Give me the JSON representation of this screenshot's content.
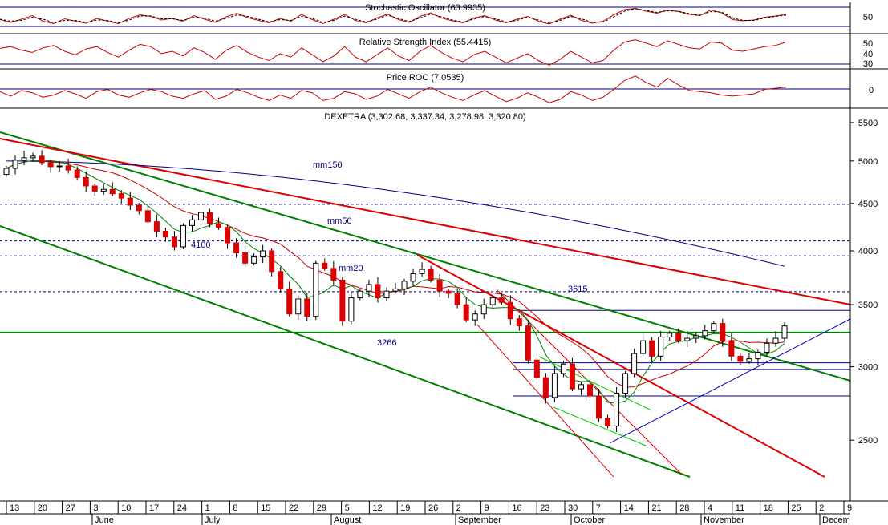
{
  "chart_data": [
    {
      "type": "line",
      "title": "Stochastic Oscillator (63.9935)",
      "yticks": [
        50
      ],
      "series": [
        {
          "style": "solid",
          "color": "#cc0000",
          "values": [
            38,
            24,
            40,
            58,
            30,
            18,
            42,
            30,
            20,
            44,
            30,
            18,
            44,
            62,
            54,
            36,
            44,
            30,
            58,
            40,
            24,
            52,
            70,
            48,
            34,
            22,
            44,
            30,
            64,
            38,
            18,
            40,
            64,
            34,
            22,
            46,
            66,
            38,
            24,
            54,
            72,
            46,
            32,
            22,
            46,
            58,
            36,
            22,
            40,
            54,
            30,
            16,
            40,
            60,
            34,
            20,
            30,
            62,
            88,
            94,
            80,
            70,
            86,
            78,
            64,
            58,
            86,
            72,
            38,
            32,
            36,
            50,
            56,
            64
          ]
        },
        {
          "style": "dashed",
          "color": "#000000",
          "values": [
            40,
            30,
            34,
            50,
            40,
            22,
            34,
            34,
            24,
            36,
            34,
            22,
            36,
            56,
            56,
            42,
            42,
            34,
            50,
            46,
            30,
            44,
            62,
            54,
            40,
            26,
            38,
            34,
            54,
            44,
            24,
            34,
            56,
            40,
            26,
            40,
            60,
            44,
            28,
            46,
            66,
            52,
            36,
            26,
            40,
            54,
            42,
            26,
            34,
            50,
            36,
            20,
            34,
            54,
            42,
            24,
            26,
            52,
            80,
            92,
            84,
            74,
            82,
            80,
            68,
            60,
            78,
            76,
            46,
            34,
            34,
            46,
            54,
            60
          ]
        }
      ]
    },
    {
      "type": "line",
      "title": "Relative Strength Index (55.4415)",
      "yticks": [
        50,
        40,
        30
      ],
      "series": [
        {
          "color": "#cc0000",
          "values": [
            55,
            58,
            52,
            48,
            56,
            60,
            50,
            44,
            54,
            58,
            48,
            40,
            52,
            62,
            58,
            46,
            50,
            42,
            56,
            48,
            36,
            52,
            60,
            48,
            40,
            34,
            46,
            40,
            56,
            44,
            32,
            42,
            58,
            40,
            32,
            44,
            56,
            42,
            34,
            50,
            60,
            48,
            38,
            32,
            44,
            50,
            40,
            30,
            38,
            46,
            34,
            26,
            36,
            50,
            40,
            30,
            34,
            52,
            66,
            70,
            64,
            58,
            68,
            62,
            56,
            54,
            66,
            64,
            52,
            50,
            54,
            58,
            60,
            66
          ]
        }
      ]
    },
    {
      "type": "line",
      "title": "Price ROC (7.0535)",
      "yticks": [
        0
      ],
      "series": [
        {
          "color": "#cc0000",
          "values": [
            2,
            -2,
            3,
            1,
            -3,
            -1,
            3,
            0,
            -4,
            2,
            4,
            -1,
            -3,
            1,
            4,
            2,
            -2,
            -4,
            0,
            3,
            -5,
            -2,
            4,
            1,
            -3,
            -6,
            -1,
            -4,
            3,
            1,
            -6,
            -4,
            2,
            0,
            -5,
            -2,
            4,
            0,
            -4,
            2,
            6,
            1,
            -3,
            -6,
            -1,
            3,
            -2,
            -7,
            -4,
            1,
            -3,
            -8,
            -5,
            2,
            -1,
            -6,
            -3,
            4,
            12,
            16,
            10,
            6,
            14,
            8,
            3,
            2,
            1,
            -1,
            -2,
            -1,
            0,
            4,
            5,
            6
          ]
        }
      ]
    },
    {
      "type": "candlestick",
      "title": "DEXETRA (3,302.68, 3,337.34, 3,278.98, 3,320.80)",
      "yscale": "log",
      "ylim": [
        2150,
        5700
      ],
      "yticks": [
        5500,
        5000,
        4500,
        4000,
        3500,
        3000,
        2500
      ],
      "x_tick_labels": [
        "13",
        "20",
        "27",
        "3",
        "10",
        "17",
        "24",
        "1",
        "8",
        "15",
        "22",
        "29",
        "5",
        "12",
        "19",
        "26",
        "2",
        "9",
        "16",
        "23",
        "30",
        "7",
        "14",
        "21",
        "28",
        "4",
        "11",
        "18",
        "25",
        "2",
        "9"
      ],
      "month_labels": [
        "June",
        "July",
        "August",
        "September",
        "October",
        "November",
        "Decem"
      ],
      "closes": [
        4910,
        5010,
        5040,
        5060,
        4980,
        4930,
        4940,
        4890,
        4800,
        4700,
        4640,
        4660,
        4610,
        4560,
        4480,
        4420,
        4300,
        4200,
        4140,
        4040,
        4260,
        4320,
        4400,
        4280,
        4240,
        4080,
        3980,
        3880,
        3940,
        4000,
        3800,
        3640,
        3420,
        3550,
        3400,
        3880,
        3830,
        3720,
        3360,
        3560,
        3620,
        3680,
        3560,
        3620,
        3640,
        3710,
        3780,
        3820,
        3720,
        3620,
        3600,
        3500,
        3370,
        3420,
        3500,
        3560,
        3520,
        3380,
        3320,
        3050,
        2920,
        2780,
        2950,
        3020,
        2840,
        2870,
        2790,
        2640,
        2590,
        2810,
        2950,
        3100,
        3200,
        3080,
        3230,
        3260,
        3200,
        3220,
        3240,
        3280,
        3340,
        3200,
        3080,
        3040,
        3060,
        3110,
        3180,
        3220,
        3320
      ],
      "moving_averages": [
        {
          "name": "mm150",
          "color": "#000080"
        },
        {
          "name": "mm50",
          "color": "#cc0000"
        },
        {
          "name": "mm20",
          "color": "#008000"
        }
      ],
      "horizontal_levels": [
        {
          "value": 3266,
          "label": "3266",
          "color": "#008000",
          "style": "solid"
        },
        {
          "value": 3615,
          "label": "3615",
          "color": "#000080",
          "style": "dashed"
        },
        {
          "value": 4100,
          "label": "4100",
          "color": "#000080",
          "style": "dashed"
        },
        {
          "value": 4490,
          "color": "#000080",
          "style": "dashed"
        },
        {
          "value": 3950,
          "color": "#000080",
          "style": "dashed"
        },
        {
          "value": 3450,
          "color": "#000080",
          "style": "solid"
        },
        {
          "value": 3030,
          "color": "#000080",
          "style": "solid"
        },
        {
          "value": 2980,
          "color": "#000080",
          "style": "solid"
        },
        {
          "value": 2790,
          "color": "#000080",
          "style": "solid"
        }
      ]
    }
  ]
}
